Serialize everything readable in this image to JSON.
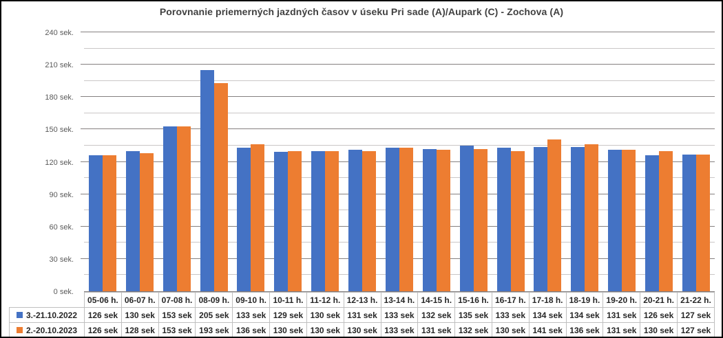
{
  "chart_data": {
    "type": "bar",
    "title": "Porovnanie priemerných jazdných časov v úseku Pri sade (A)/Aupark (C) - Zochova (A)",
    "categories": [
      "05-06 h.",
      "06-07 h.",
      "07-08 h.",
      "08-09 h.",
      "09-10 h.",
      "10-11 h.",
      "11-12 h.",
      "12-13 h.",
      "13-14 h.",
      "14-15 h.",
      "15-16 h.",
      "16-17 h.",
      "17-18 h.",
      "18-19 h.",
      "19-20 h.",
      "20-21 h.",
      "21-22 h."
    ],
    "series": [
      {
        "name": "3.-21.10.2022",
        "color": "#4472C4",
        "values": [
          126,
          130,
          153,
          205,
          133,
          129,
          130,
          131,
          133,
          132,
          135,
          133,
          134,
          134,
          131,
          126,
          127
        ]
      },
      {
        "name": "2.-20.10.2023",
        "color": "#ED7D31",
        "values": [
          126,
          128,
          153,
          193,
          136,
          130,
          130,
          130,
          133,
          131,
          132,
          130,
          141,
          136,
          131,
          130,
          127
        ]
      }
    ],
    "cell_value_suffix": " sek",
    "y_axis": {
      "min": 0,
      "max": 240,
      "major_step": 30,
      "minor_step": 15,
      "tick_suffix": " sek."
    },
    "ylim": [
      0,
      240
    ],
    "xlabel": "",
    "ylabel": "",
    "grid": true,
    "legend_position": "data-table-left",
    "data_table": true
  },
  "style": {
    "plot_background": "#ffffff",
    "major_gridline": "#847f7f",
    "minor_gridline": "#c9c6c6",
    "axis_line": "#7f7a7a",
    "table_border": "#bfbfbf",
    "table_text": "#262626",
    "tick_text": "#595959",
    "title_text": "#404040"
  }
}
